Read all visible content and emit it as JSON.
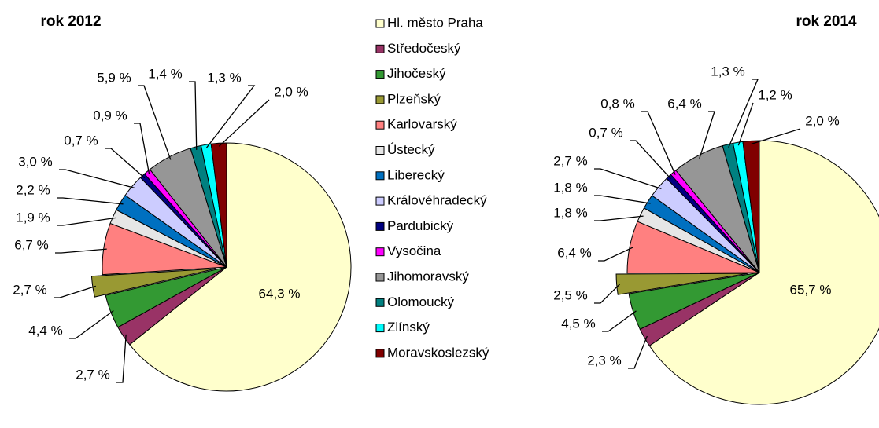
{
  "chart_data": [
    {
      "type": "pie",
      "title": "rok 2012",
      "categories": [
        "Hl. město Praha",
        "Středočeský",
        "Jihočeský",
        "Plzeňský",
        "Karlovarský",
        "Ústecký",
        "Liberecký",
        "Královéhradecký",
        "Pardubický",
        "Vysočina",
        "Jihomoravský",
        "Olomoucký",
        "Zlínský",
        "Moravskoslezský"
      ],
      "colors": [
        "#ffffcc",
        "#993366",
        "#339933",
        "#999933",
        "#ff8080",
        "#e6e6e6",
        "#0070c0",
        "#ccccff",
        "#000080",
        "#ff00ff",
        "#969696",
        "#008080",
        "#00ffff",
        "#800000"
      ],
      "values": [
        64.3,
        2.7,
        4.4,
        2.7,
        6.7,
        1.9,
        2.2,
        3.0,
        0.7,
        0.9,
        5.9,
        1.4,
        1.3,
        2.0
      ],
      "value_labels": [
        "64,3 %",
        "2,7 %",
        "4,4 %",
        "2,7 %",
        "6,7 %",
        "1,9 %",
        "2,2 %",
        "3,0 %",
        "0,7 %",
        "0,9 %",
        "5,9 %",
        "1,4 %",
        "1,3 %",
        "2,0 %"
      ]
    },
    {
      "type": "pie",
      "title": "rok 2014",
      "values": [
        65.7,
        2.3,
        4.5,
        2.5,
        6.4,
        1.8,
        1.8,
        2.7,
        0.7,
        0.8,
        6.4,
        1.3,
        1.2,
        2.0
      ],
      "value_labels": [
        "65,7 %",
        "2,3 %",
        "4,5 %",
        "2,5 %",
        "6,4 %",
        "1,8 %",
        "1,8 %",
        "2,7 %",
        "0,7 %",
        "0,8 %",
        "6,4 %",
        "1,3 %",
        "1,2 %",
        "2,0 %"
      ]
    }
  ]
}
